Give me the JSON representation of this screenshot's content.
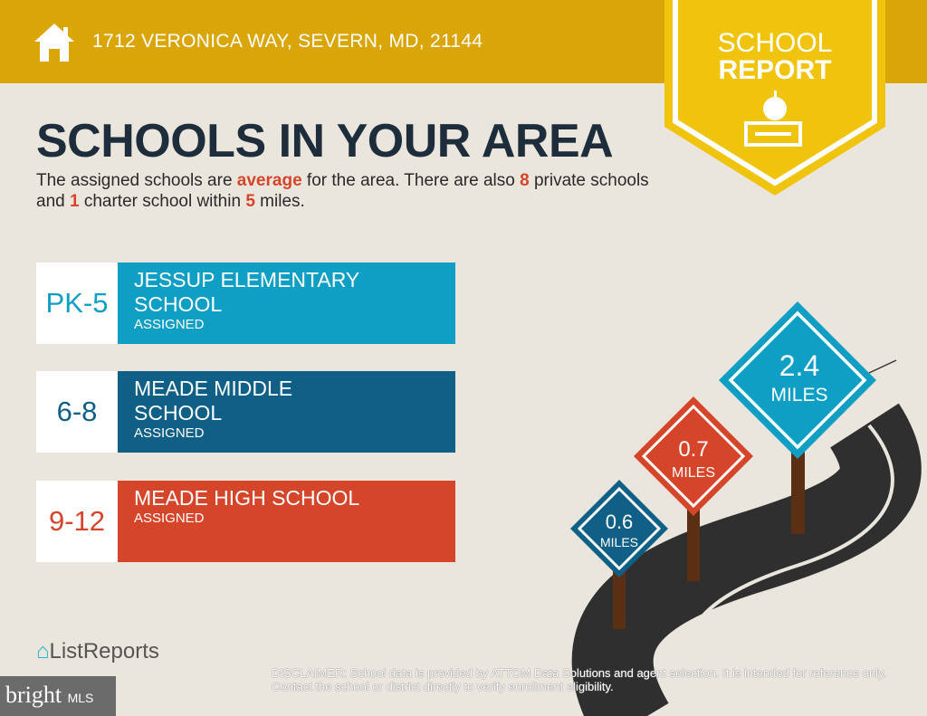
{
  "header": {
    "address": "1712 VERONICA WAY, SEVERN, MD, 21144",
    "icon": "house-icon"
  },
  "badge": {
    "line1": "SCHOOL",
    "line2": "REPORT",
    "icon": "apple-books-icon"
  },
  "title": "SCHOOLS IN YOUR AREA",
  "summary": {
    "p1": "The assigned schools are ",
    "rating": "average",
    "p2": " for the area. There are also ",
    "private_count": "8",
    "p3": " private schools and ",
    "charter_count": "1",
    "p4": " charter school within ",
    "miles": "5",
    "p5": " miles."
  },
  "schools": [
    {
      "grade": "PK-5",
      "name": "JESSUP ELEMENTARY SCHOOL",
      "status": "ASSIGNED",
      "color": "#0f9ec4",
      "distance": "0.6",
      "unit": "MILES"
    },
    {
      "grade": "6-8",
      "name": "MEADE MIDDLE SCHOOL",
      "status": "ASSIGNED",
      "color": "#0f5f86",
      "distance": "0.7",
      "unit": "MILES"
    },
    {
      "grade": "9-12",
      "name": "MEADE HIGH SCHOOL",
      "status": "ASSIGNED",
      "color": "#d5452a",
      "distance": "2.4",
      "unit": "MILES"
    }
  ],
  "footer": {
    "logo": "ListReports",
    "watermark": "bright MLS",
    "disclaimer_label": "DISCLAIMER",
    "disclaimer": ": School data is provided by ATTOM Data Solutions and agent selection. It is intended for reference only. Contact the school or district directly to verify enrollment eligibility."
  }
}
